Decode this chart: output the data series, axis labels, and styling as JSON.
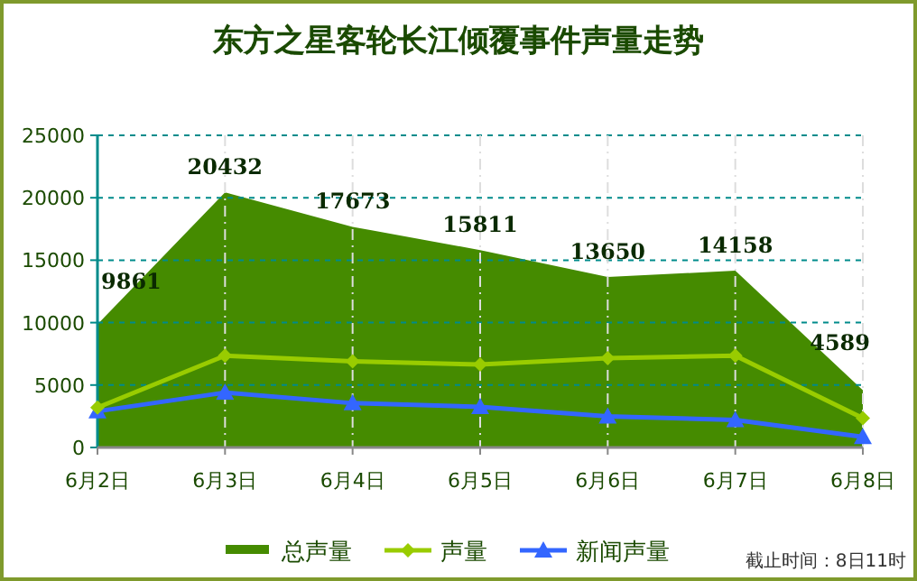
{
  "chart_data": {
    "type": "line",
    "title": "东方之星客轮长江倾覆事件声量走势",
    "categories": [
      "6月2日",
      "6月3日",
      "6月4日",
      "6月5日",
      "6月6日",
      "6月7日",
      "6月8日"
    ],
    "series": [
      {
        "name": "总声量",
        "type": "area",
        "color": "#458b00",
        "values": [
          9861,
          20432,
          17673,
          15811,
          13650,
          14158,
          4589
        ],
        "value_labels": [
          "9861",
          "20432",
          "17673",
          "15811",
          "13650",
          "14158",
          "4589"
        ]
      },
      {
        "name": "声量",
        "color": "#99cc00",
        "marker": "diamond",
        "values": [
          3200,
          7350,
          6900,
          6650,
          7150,
          7350,
          2350
        ]
      },
      {
        "name": "新闻声量",
        "color": "#3366ff",
        "marker": "triangle",
        "values": [
          2900,
          4400,
          3550,
          3250,
          2500,
          2200,
          850
        ]
      }
    ],
    "ylim": [
      0,
      25000
    ],
    "yticks": [
      0,
      5000,
      10000,
      15000,
      20000,
      25000
    ],
    "grid": true,
    "legend": "bottom",
    "annotations": [
      "截止时间：8日11时"
    ]
  }
}
